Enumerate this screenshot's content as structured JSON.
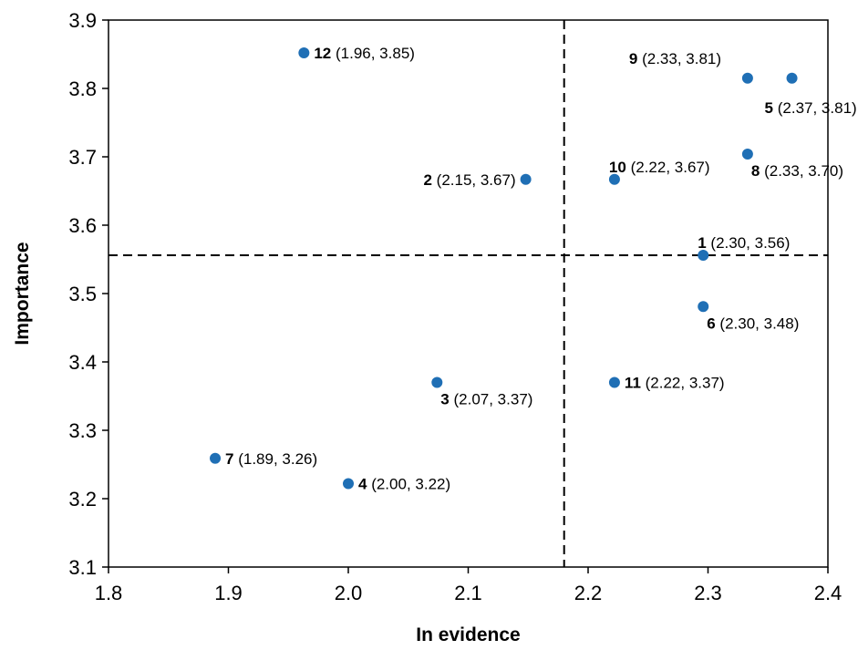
{
  "chart_data": {
    "type": "scatter",
    "xlabel": "In evidence",
    "ylabel": "Importance",
    "xlim": [
      1.8,
      2.4
    ],
    "ylim": [
      3.1,
      3.9
    ],
    "xticks": [
      "1.8",
      "1.9",
      "2.0",
      "2.1",
      "2.2",
      "2.3",
      "2.4"
    ],
    "yticks": [
      "3.1",
      "3.2",
      "3.3",
      "3.4",
      "3.5",
      "3.6",
      "3.7",
      "3.8",
      "3.9"
    ],
    "grid": false,
    "marker_color": "#1f6fb5",
    "reference_lines": {
      "x": 2.18,
      "y": 3.556,
      "style": "dashed"
    },
    "points": [
      {
        "id": "1",
        "x": 2.296,
        "y": 3.556,
        "label": "(2.30, 3.56)",
        "label_pos": "above"
      },
      {
        "id": "2",
        "x": 2.148,
        "y": 3.667,
        "label": "(2.15, 3.67)",
        "label_pos": "left"
      },
      {
        "id": "3",
        "x": 2.074,
        "y": 3.37,
        "label": "(2.07, 3.37)",
        "label_pos": "below-right"
      },
      {
        "id": "4",
        "x": 2.0,
        "y": 3.222,
        "label": "(2.00, 3.22)",
        "label_pos": "right"
      },
      {
        "id": "5",
        "x": 2.37,
        "y": 3.815,
        "label": "(2.37, 3.81)",
        "label_pos": "below-left"
      },
      {
        "id": "6",
        "x": 2.296,
        "y": 3.481,
        "label": "(2.30, 3.48)",
        "label_pos": "below-right"
      },
      {
        "id": "7",
        "x": 1.889,
        "y": 3.259,
        "label": "(1.89, 3.26)",
        "label_pos": "right"
      },
      {
        "id": "8",
        "x": 2.333,
        "y": 3.704,
        "label": "(2.33, 3.70)",
        "label_pos": "below-right"
      },
      {
        "id": "9",
        "x": 2.333,
        "y": 3.815,
        "label": "(2.33, 3.81)",
        "label_pos": "above-left"
      },
      {
        "id": "10",
        "x": 2.222,
        "y": 3.667,
        "label": "(2.22, 3.67)",
        "label_pos": "above"
      },
      {
        "id": "11",
        "x": 2.222,
        "y": 3.37,
        "label": "(2.22, 3.37)",
        "label_pos": "right"
      },
      {
        "id": "12",
        "x": 1.963,
        "y": 3.852,
        "label": "(1.96, 3.85)",
        "label_pos": "right"
      }
    ]
  }
}
